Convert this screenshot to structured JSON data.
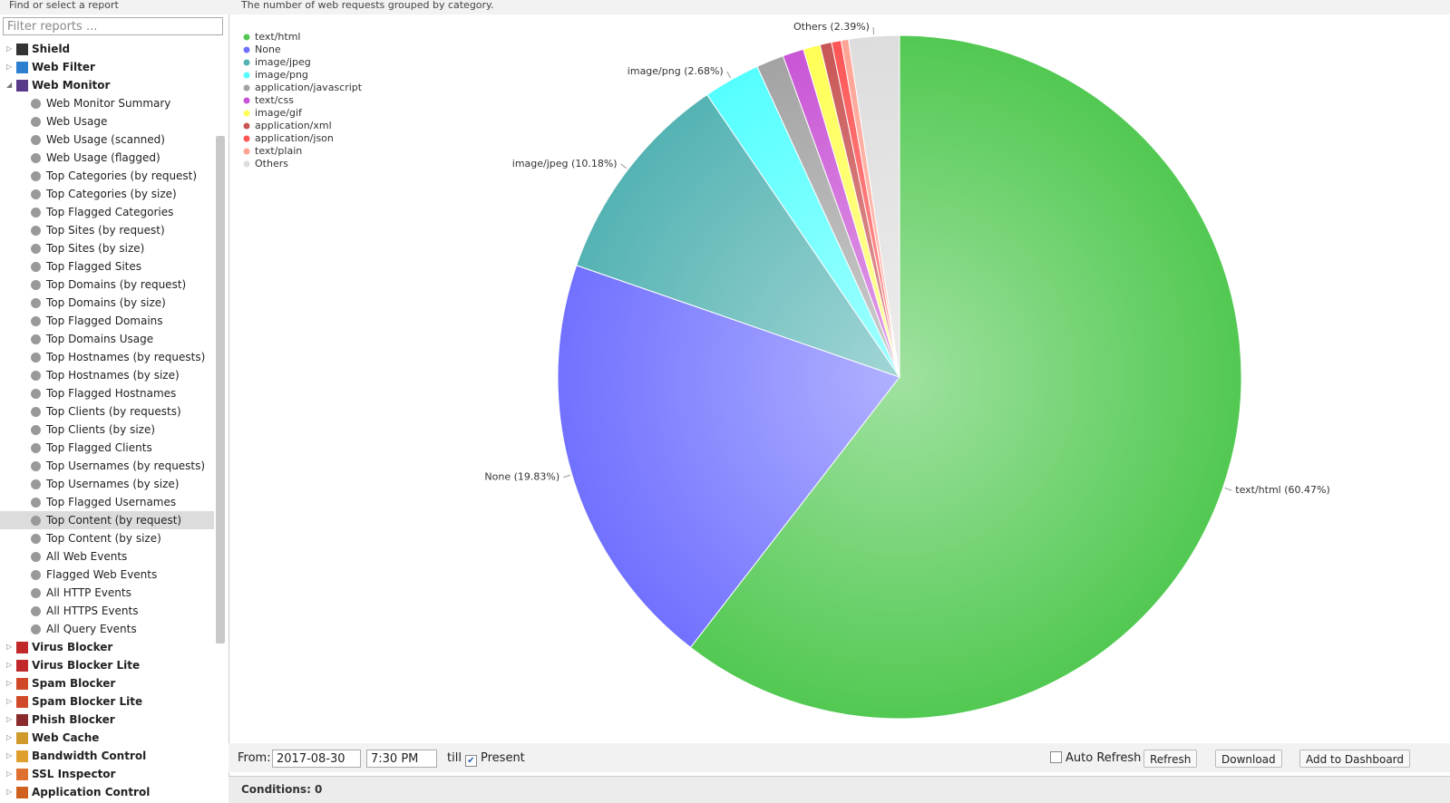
{
  "sidebar": {
    "title": "Find or select a report",
    "filter_placeholder": "Filter reports ...",
    "groups": [
      {
        "label": "Shield"
      },
      {
        "label": "Web Filter"
      },
      {
        "label": "Web Monitor",
        "children": [
          {
            "label": "Web Monitor Summary"
          },
          {
            "label": "Web Usage"
          },
          {
            "label": "Web Usage (scanned)"
          },
          {
            "label": "Web Usage (flagged)"
          },
          {
            "label": "Top Categories (by request)"
          },
          {
            "label": "Top Categories (by size)"
          },
          {
            "label": "Top Flagged Categories"
          },
          {
            "label": "Top Sites (by request)"
          },
          {
            "label": "Top Sites (by size)"
          },
          {
            "label": "Top Flagged Sites"
          },
          {
            "label": "Top Domains (by request)"
          },
          {
            "label": "Top Domains (by size)"
          },
          {
            "label": "Top Flagged Domains"
          },
          {
            "label": "Top Domains Usage"
          },
          {
            "label": "Top Hostnames (by requests)"
          },
          {
            "label": "Top Hostnames (by size)"
          },
          {
            "label": "Top Flagged Hostnames"
          },
          {
            "label": "Top Clients (by requests)"
          },
          {
            "label": "Top Clients (by size)"
          },
          {
            "label": "Top Flagged Clients"
          },
          {
            "label": "Top Usernames (by requests)"
          },
          {
            "label": "Top Usernames (by size)"
          },
          {
            "label": "Top Flagged Usernames"
          },
          {
            "label": "Top Content (by request)",
            "selected": true
          },
          {
            "label": "Top Content (by size)"
          },
          {
            "label": "All Web Events"
          },
          {
            "label": "Flagged Web Events"
          },
          {
            "label": "All HTTP Events"
          },
          {
            "label": "All HTTPS Events"
          },
          {
            "label": "All Query Events"
          }
        ]
      },
      {
        "label": "Virus Blocker"
      },
      {
        "label": "Virus Blocker Lite"
      },
      {
        "label": "Spam Blocker"
      },
      {
        "label": "Spam Blocker Lite"
      },
      {
        "label": "Phish Blocker"
      },
      {
        "label": "Web Cache"
      },
      {
        "label": "Bandwidth Control"
      },
      {
        "label": "SSL Inspector"
      },
      {
        "label": "Application Control"
      }
    ]
  },
  "report": {
    "description": "The number of web requests grouped by category."
  },
  "chart_data": {
    "type": "pie",
    "categories": [
      "text/html",
      "None",
      "image/jpeg",
      "image/png",
      "application/javascript",
      "text/css",
      "image/gif",
      "application/xml",
      "application/json",
      "text/plain",
      "Others"
    ],
    "values": [
      60.47,
      19.83,
      10.18,
      2.68,
      1.3,
      1.0,
      0.8,
      0.55,
      0.45,
      0.35,
      2.39
    ],
    "value_labels": [
      "text/html (60.47%)",
      "None (19.83%)",
      "image/jpeg (10.18%)",
      "image/png (2.68%)",
      null,
      null,
      null,
      null,
      null,
      null,
      "Others (2.39%)"
    ],
    "colors": [
      "#52c952",
      "#7171ff",
      "#55b3b3",
      "#55ffff",
      "#a3a3a3",
      "#c955d5",
      "#ffff55",
      "#c95555",
      "#ff5555",
      "#ffa394",
      "#dddddd"
    ],
    "legend": "top-left"
  },
  "toolbar": {
    "from_label": "From:",
    "date": "2017-08-30",
    "time": "7:30 PM",
    "till_label": "till",
    "present_label": "Present",
    "present_checked": true,
    "auto_refresh_label": "Auto Refresh",
    "auto_refresh_checked": false,
    "buttons": [
      "Refresh",
      "Download",
      "Add to Dashboard"
    ]
  },
  "conditions": {
    "label": "Conditions: 0"
  }
}
